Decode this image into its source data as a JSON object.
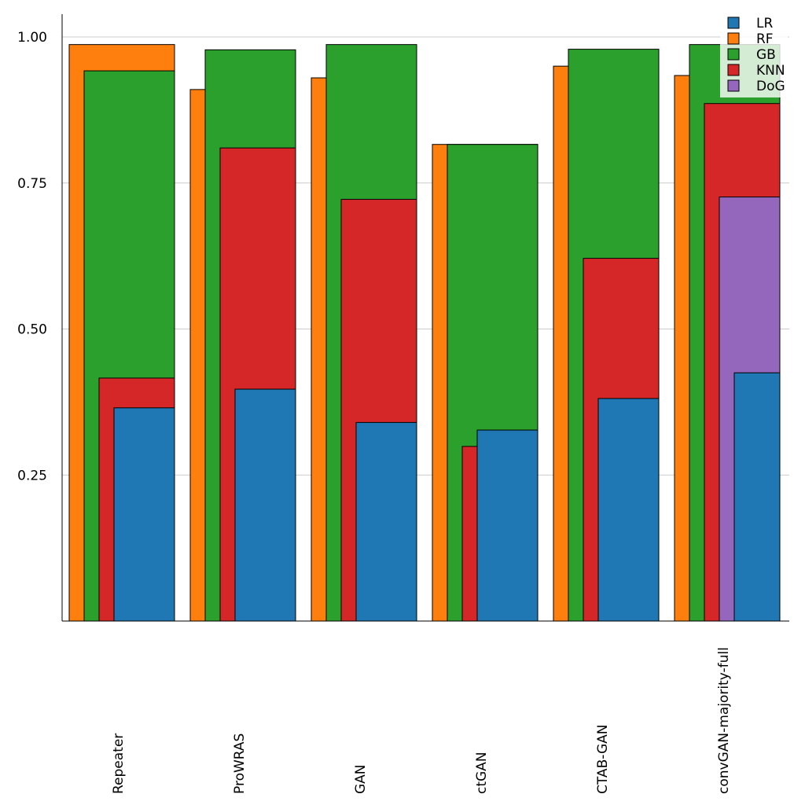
{
  "chart_data": {
    "type": "bar",
    "categories": [
      "Repeater",
      "ProWRAS",
      "GAN",
      "ctGAN",
      "CTAB-GAN",
      "convGAN-majority-full"
    ],
    "series": [
      {
        "name": "LR",
        "values": [
          0.365,
          0.397,
          0.34,
          0.327,
          0.381,
          0.425
        ],
        "color": "#1f77b4"
      },
      {
        "name": "RF",
        "values": [
          0.987,
          0.91,
          0.93,
          0.816,
          0.95,
          0.934
        ],
        "color": "#ff7f0e"
      },
      {
        "name": "GB",
        "values": [
          0.942,
          0.978,
          0.987,
          0.816,
          0.979,
          0.987
        ],
        "color": "#2ca02c"
      },
      {
        "name": "KNN",
        "values": [
          0.416,
          0.81,
          0.722,
          0.299,
          0.621,
          0.886
        ],
        "color": "#d62728"
      },
      {
        "name": "DoG",
        "values": [
          null,
          null,
          null,
          null,
          null,
          0.726
        ],
        "color": "#9467bd"
      }
    ],
    "title": "",
    "xlabel": "",
    "ylabel": "",
    "ylim": [
      0,
      1.03
    ],
    "yticks": [
      0.25,
      0.5,
      0.75,
      1.0
    ],
    "ytick_labels": [
      "0.25",
      "0.50",
      "0.75",
      "1.00"
    ],
    "grid": "horizontal",
    "legend_position": "top-right"
  }
}
